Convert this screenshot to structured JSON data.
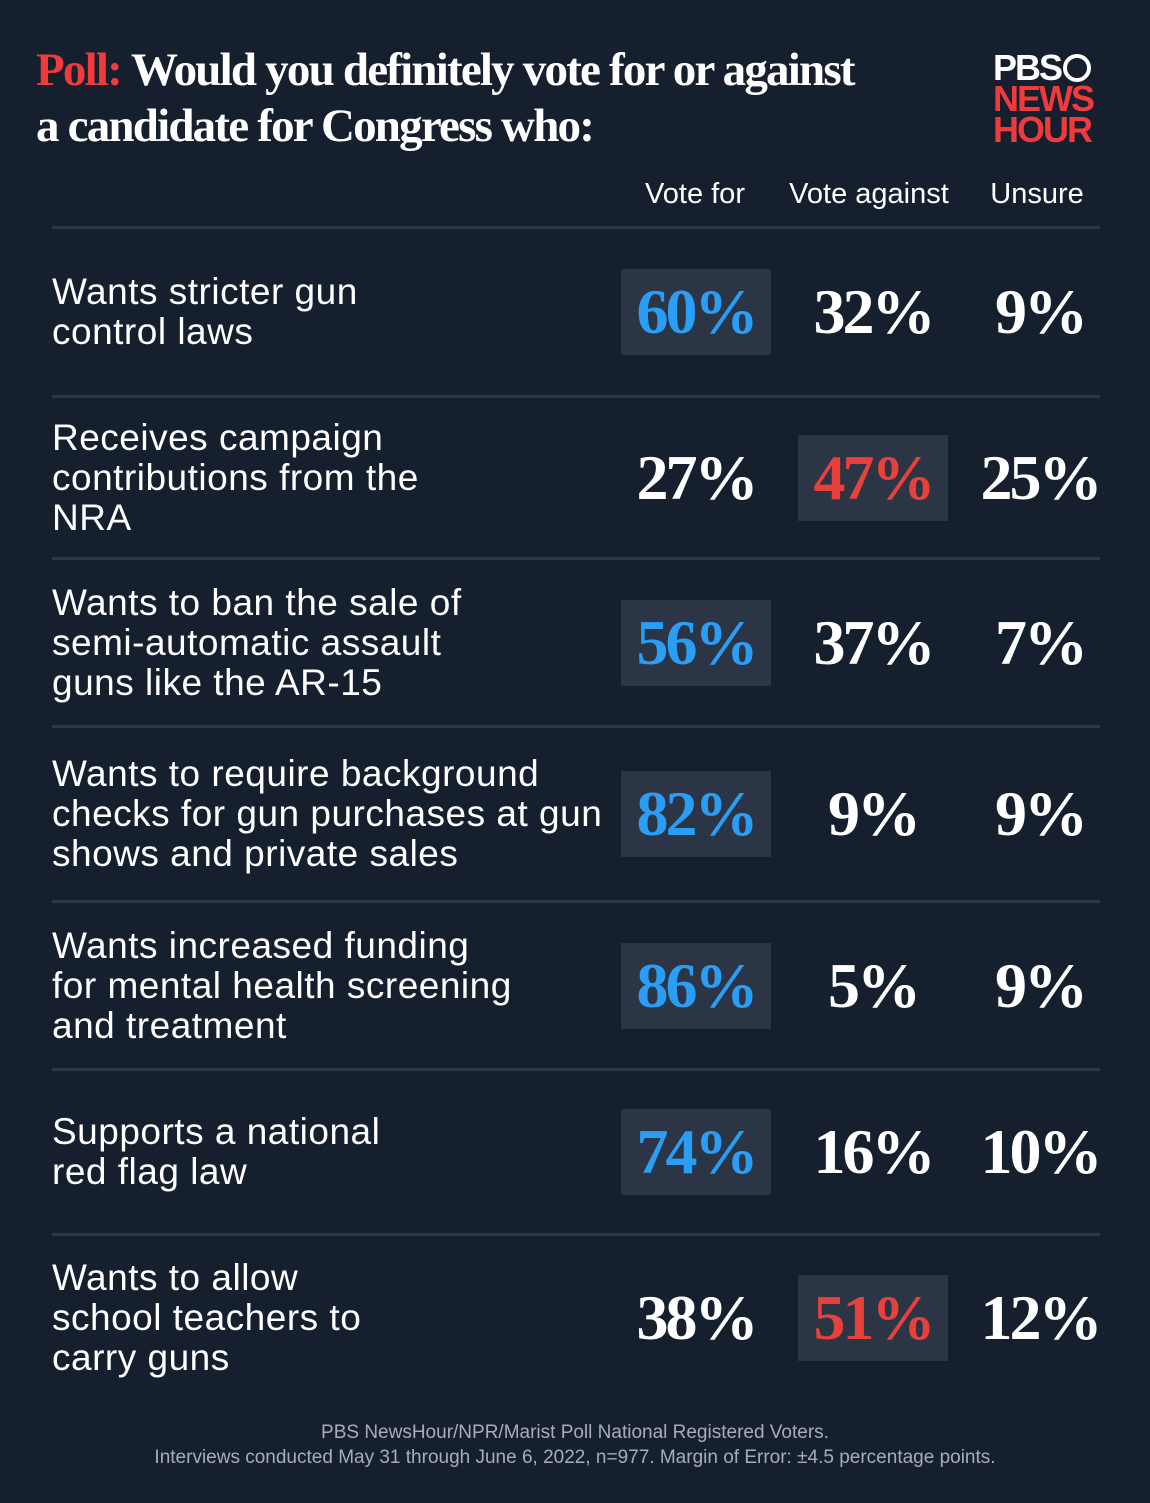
{
  "title": {
    "kicker": "Poll:",
    "text": "Would you definitely vote for or against a candidate for Congress who:"
  },
  "logo": {
    "line1": "PBS",
    "line2": "NEWS",
    "line3": "HOUR"
  },
  "colors": {
    "background": "#161f2e",
    "highlight_box": "#2c3545",
    "vote_for_highlight": "#2a9df4",
    "vote_against_highlight": "#e8403a"
  },
  "chart_data": {
    "type": "table",
    "columns": [
      "Vote for",
      "Vote against",
      "Unsure"
    ],
    "rows": [
      {
        "label": "Wants stricter gun control laws",
        "values": [
          "60%",
          "32%",
          "9%"
        ],
        "highlight": 0
      },
      {
        "label": "Receives campaign contributions from the NRA",
        "values": [
          "27%",
          "47%",
          "25%"
        ],
        "highlight": 1
      },
      {
        "label": "Wants to ban the sale of semi-automatic assault guns like the AR-15",
        "values": [
          "56%",
          "37%",
          "7%"
        ],
        "highlight": 0
      },
      {
        "label": "Wants to require background checks for gun purchases at gun shows and private sales",
        "values": [
          "82%",
          "9%",
          "9%"
        ],
        "highlight": 0
      },
      {
        "label": "Wants increased funding for mental health screening and treatment",
        "values": [
          "86%",
          "5%",
          "9%"
        ],
        "highlight": 0
      },
      {
        "label": "Supports a national red flag law",
        "values": [
          "74%",
          "16%",
          "10%"
        ],
        "highlight": 0
      },
      {
        "label": "Wants to allow school teachers to carry guns",
        "values": [
          "38%",
          "51%",
          "12%"
        ],
        "highlight": 1
      }
    ]
  },
  "footer": {
    "line1": "PBS NewsHour/NPR/Marist Poll National Registered Voters.",
    "line2": "Interviews conducted May 31 through June 6, 2022, n=977. Margin of Error: ±4.5 percentage points."
  }
}
